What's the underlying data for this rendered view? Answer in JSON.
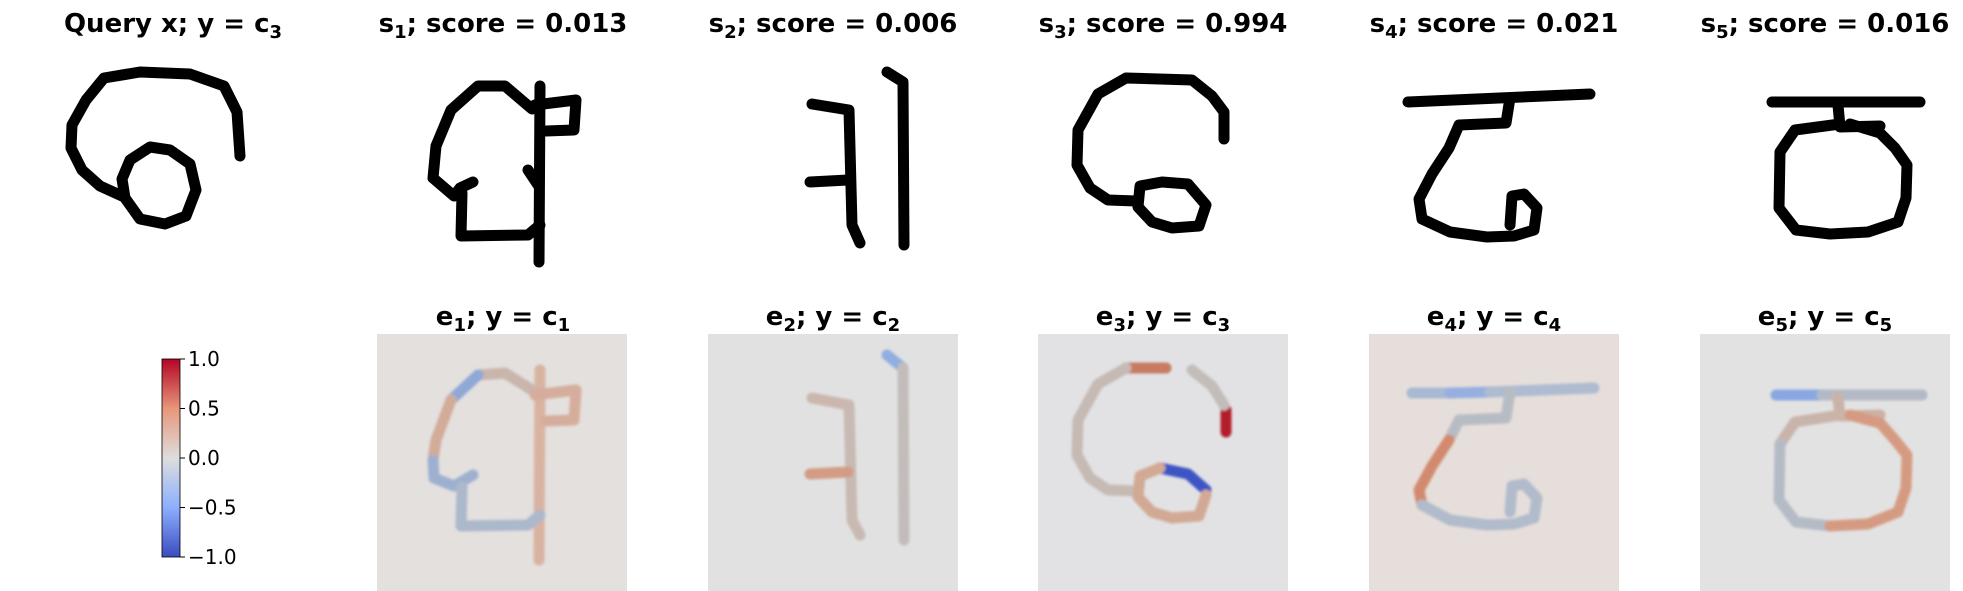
{
  "panels_top": [
    {
      "title": "Query x; y = c",
      "sub": "3",
      "kind": "query"
    },
    {
      "title": "s",
      "sub": "1",
      "rest": "; score = 0.013",
      "kind": "support"
    },
    {
      "title": "s",
      "sub": "2",
      "rest": "; score = 0.006",
      "kind": "support"
    },
    {
      "title": "s",
      "sub": "3",
      "rest": "; score = 0.994",
      "kind": "support"
    },
    {
      "title": "s",
      "sub": "4",
      "rest": "; score = 0.021",
      "kind": "support"
    },
    {
      "title": "s",
      "sub": "5",
      "rest": "; score = 0.016",
      "kind": "support"
    }
  ],
  "panels_bottom": [
    {
      "title": "e",
      "sub": "1",
      "mid": "; y = c",
      "sub2": "1"
    },
    {
      "title": "e",
      "sub": "2",
      "mid": "; y = c",
      "sub2": "2"
    },
    {
      "title": "e",
      "sub": "3",
      "mid": "; y = c",
      "sub2": "3"
    },
    {
      "title": "e",
      "sub": "4",
      "mid": "; y = c",
      "sub2": "4"
    },
    {
      "title": "e",
      "sub": "5",
      "mid": "; y = c",
      "sub2": "5"
    }
  ],
  "colorbar": {
    "ticks": [
      "1.0",
      "0.5",
      "0.0",
      "−0.5",
      "−1.0"
    ],
    "tick_values": [
      1.0,
      0.5,
      0.0,
      -0.5,
      -1.0
    ],
    "colormap": "coolwarm",
    "colors": {
      "high": "#b40426",
      "mid": "#dddddd",
      "low": "#3b4cc0"
    }
  }
}
